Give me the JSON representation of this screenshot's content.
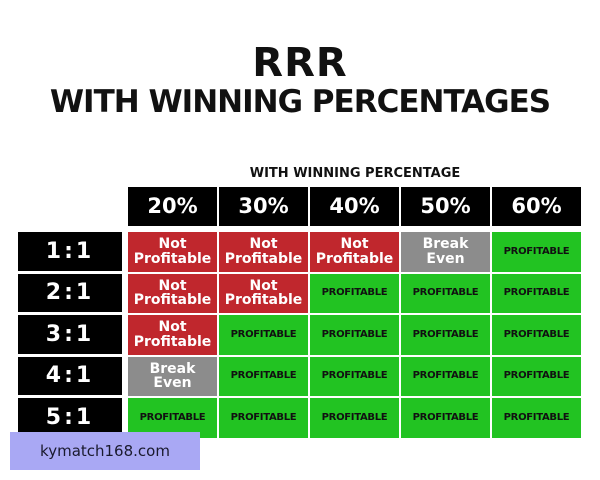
{
  "header": {
    "title": "RRR",
    "subtitle": "WITH WINNING PERCENTAGES"
  },
  "table": {
    "caption": "WITH WINNING PERCENTAGE",
    "columns": [
      "20%",
      "30%",
      "40%",
      "50%",
      "60%"
    ],
    "row_labels": [
      "1:1",
      "2:1",
      "3:1",
      "4:1",
      "5:1"
    ],
    "rows": [
      [
        {
          "text": "Not Profitable",
          "color": "#c0272d"
        },
        {
          "text": "Not Profitable",
          "color": "#c0272d"
        },
        {
          "text": "Not Profitable",
          "color": "#c0272d"
        },
        {
          "text": "Break Even",
          "color": "#8c8c8c"
        },
        {
          "text": "PROFITABLE",
          "color": "#22c322"
        }
      ],
      [
        {
          "text": "Not Profitable",
          "color": "#c0272d"
        },
        {
          "text": "Not Profitable",
          "color": "#c0272d"
        },
        {
          "text": "PROFITABLE",
          "color": "#22c322"
        },
        {
          "text": "PROFITABLE",
          "color": "#22c322"
        },
        {
          "text": "PROFITABLE",
          "color": "#22c322"
        }
      ],
      [
        {
          "text": "Not Profitable",
          "color": "#c0272d"
        },
        {
          "text": "PROFITABLE",
          "color": "#22c322"
        },
        {
          "text": "PROFITABLE",
          "color": "#22c322"
        },
        {
          "text": "PROFITABLE",
          "color": "#22c322"
        },
        {
          "text": "PROFITABLE",
          "color": "#22c322"
        }
      ],
      [
        {
          "text": "Break Even",
          "color": "#8c8c8c"
        },
        {
          "text": "PROFITABLE",
          "color": "#22c322"
        },
        {
          "text": "PROFITABLE",
          "color": "#22c322"
        },
        {
          "text": "PROFITABLE",
          "color": "#22c322"
        },
        {
          "text": "PROFITABLE",
          "color": "#22c322"
        }
      ],
      [
        {
          "text": "PROFITABLE",
          "color": "#22c322"
        },
        {
          "text": "PROFITABLE",
          "color": "#22c322"
        },
        {
          "text": "PROFITABLE",
          "color": "#22c322"
        },
        {
          "text": "PROFITABLE",
          "color": "#22c322"
        },
        {
          "text": "PROFITABLE",
          "color": "#22c322"
        }
      ]
    ]
  },
  "watermark": "kymatch168.com"
}
